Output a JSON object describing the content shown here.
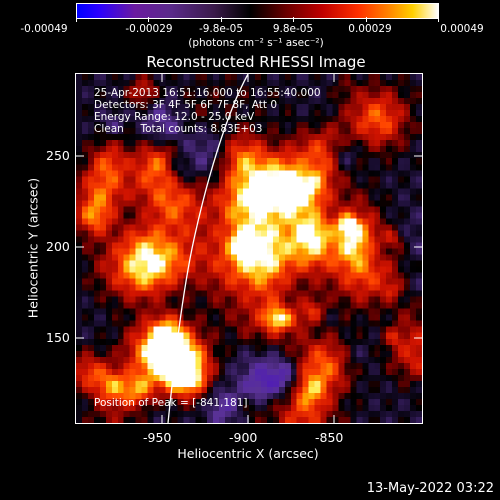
{
  "colorbar": {
    "labels": [
      "-0.00049",
      "-0.00029",
      "-9.8e-05",
      "9.8e-05",
      "0.00029",
      "0.00049"
    ],
    "unit": "(photons cm⁻² s⁻¹ asec⁻²)"
  },
  "title": "Reconstructed RHESSI Image",
  "info": {
    "time": "25-Apr-2013 16:51:16.000 to 16:55:40.000",
    "detectors": "Detectors: 3F 4F 5F 6F 7F 8F, Att 0",
    "energy": "Energy Range: 12.0 - 25.0 keV",
    "clean": "Clean     Total counts: 8.83E+03",
    "peak": "Position of Peak = [-841,181]"
  },
  "axes": {
    "xlabel": "Heliocentric X (arcsec)",
    "ylabel": "Heliocentric Y (arcsec)",
    "xticks": [
      "-950",
      "-900",
      "-850"
    ],
    "yticks": [
      "250",
      "200",
      "150"
    ]
  },
  "footer": "13-May-2022 03:22"
}
